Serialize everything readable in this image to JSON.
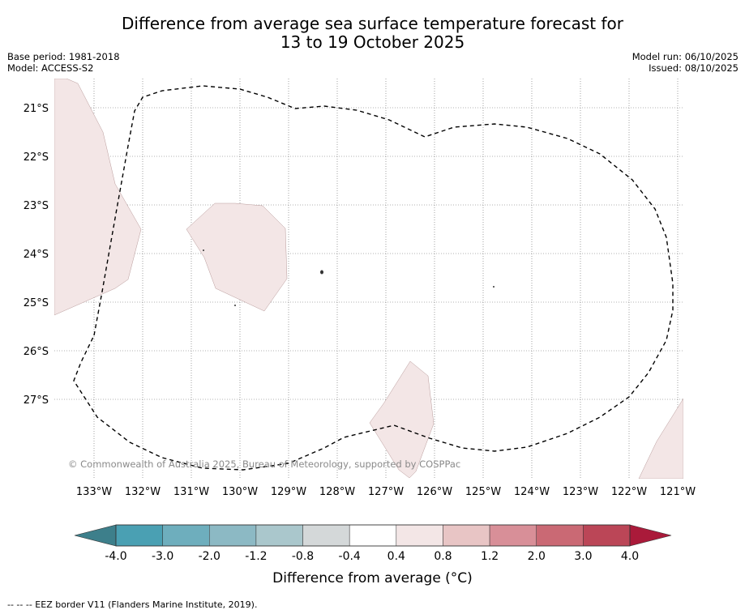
{
  "title": {
    "line1": "Difference from average sea surface temperature forecast for",
    "line2": "13 to 19 October 2025"
  },
  "meta": {
    "base_period": "Base period: 1981-2018",
    "model": "Model: ACCESS-S2",
    "model_run": "Model run: 06/10/2025",
    "issued": "Issued: 08/10/2025"
  },
  "map": {
    "lat_labels": [
      "21°S",
      "22°S",
      "23°S",
      "24°S",
      "25°S",
      "26°S",
      "27°S"
    ],
    "lon_labels": [
      "133°W",
      "132°W",
      "131°W",
      "130°W",
      "129°W",
      "128°W",
      "127°W",
      "126°W",
      "125°W",
      "124°W",
      "123°W",
      "122°W",
      "121°W"
    ],
    "copyright": "© Commonwealth of Australia 2025, Bureau of Meteorology, supported by COSPPac",
    "anomaly_fill_color": "#f3e6e6"
  },
  "colorbar": {
    "title": "Difference from average (°C)",
    "tick_labels": [
      "-4.0",
      "-3.0",
      "-2.0",
      "-1.2",
      "-0.8",
      "-0.4",
      "0.4",
      "0.8",
      "1.2",
      "2.0",
      "3.0",
      "4.0"
    ],
    "low_extend_color": "#3d7f8b",
    "high_extend_color": "#aa1a3a",
    "colors": [
      "#4aa0b3",
      "#6eaebd",
      "#8cb9c4",
      "#aac7cc",
      "#d4d8d9",
      "#ffffff",
      "#f3e6e6",
      "#e8c5c5",
      "#d88f98",
      "#ca6974",
      "#bb4657"
    ]
  },
  "footnote": "--  --  -- EEZ border V11 (Flanders Marine Institute, 2019)."
}
